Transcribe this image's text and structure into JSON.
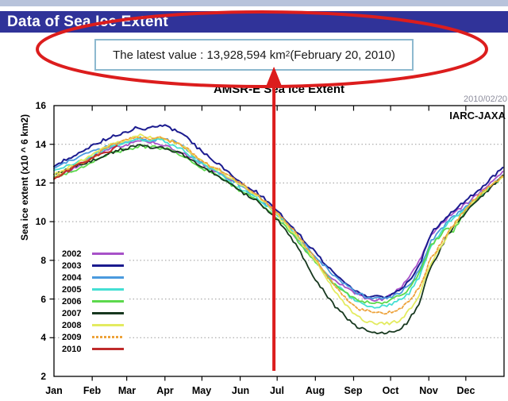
{
  "page": {
    "top_strip_color": "#b8c3db"
  },
  "header": {
    "title": "Data of Sea Ice Extent",
    "bg_color": "#303399",
    "text_color": "#ffffff"
  },
  "callout": {
    "text_before": "The latest value : 13,928,594 km",
    "superscript": "2",
    "text_after": " (February 20, 2010)",
    "border_color": "#8db9cf"
  },
  "chart_data": {
    "type": "line",
    "title": "AMSR-E Sea Ice Extent",
    "date_stamp": "2010/02/20",
    "source_label": "IARC-JAXA",
    "xlabel": "",
    "ylabel": "Sea ice extent (x10 ^ 6 km2)",
    "ylim": [
      2,
      16
    ],
    "yticks": [
      16,
      14,
      12,
      10,
      8,
      6,
      4,
      2
    ],
    "grid_values": [
      14,
      12,
      10,
      8,
      6,
      4
    ],
    "grid_color": "#999999",
    "months": [
      "Jan",
      "Feb",
      "Mar",
      "Apr",
      "May",
      "Jun",
      "Jul",
      "Aug",
      "Sep",
      "Oct",
      "Nov",
      "Dec"
    ],
    "month_start_days": [
      0,
      31,
      59,
      90,
      120,
      151,
      181,
      212,
      243,
      273,
      304,
      334
    ],
    "annotation": {
      "color": "#dc1d1d",
      "arrow_day": 180
    },
    "series": [
      {
        "name": "2002",
        "color": "#a751c8",
        "dashed": false,
        "points": [
          [
            0,
            12.3
          ],
          [
            15,
            12.7
          ],
          [
            31,
            13.35
          ],
          [
            45,
            13.8
          ],
          [
            59,
            14.0
          ],
          [
            70,
            14.15
          ],
          [
            80,
            14.1
          ],
          [
            90,
            13.95
          ],
          [
            105,
            13.5
          ],
          [
            120,
            13.0
          ],
          [
            135,
            12.5
          ],
          [
            151,
            11.95
          ],
          [
            165,
            11.4
          ],
          [
            181,
            10.45
          ],
          [
            195,
            9.3
          ],
          [
            212,
            7.95
          ],
          [
            227,
            7.0
          ],
          [
            243,
            6.35
          ],
          [
            250,
            6.1
          ],
          [
            258,
            5.95
          ],
          [
            266,
            6.0
          ],
          [
            273,
            6.2
          ],
          [
            281,
            6.6
          ],
          [
            288,
            7.1
          ],
          [
            297,
            8.1
          ],
          [
            305,
            9.2
          ],
          [
            319,
            10.2
          ],
          [
            334,
            10.9
          ],
          [
            349,
            11.7
          ],
          [
            364,
            12.6
          ]
        ]
      },
      {
        "name": "2003",
        "color": "#1b1b8f",
        "dashed": false,
        "points": [
          [
            0,
            12.85
          ],
          [
            15,
            13.4
          ],
          [
            31,
            13.95
          ],
          [
            45,
            14.35
          ],
          [
            59,
            14.65
          ],
          [
            67,
            14.9
          ],
          [
            75,
            14.8
          ],
          [
            82,
            14.95
          ],
          [
            87,
            15.0
          ],
          [
            95,
            14.8
          ],
          [
            105,
            14.55
          ],
          [
            120,
            13.6
          ],
          [
            135,
            12.9
          ],
          [
            151,
            12.05
          ],
          [
            165,
            11.5
          ],
          [
            181,
            10.6
          ],
          [
            195,
            9.6
          ],
          [
            212,
            8.4
          ],
          [
            227,
            7.3
          ],
          [
            243,
            6.5
          ],
          [
            252,
            6.2
          ],
          [
            258,
            6.1
          ],
          [
            266,
            6.1
          ],
          [
            273,
            6.2
          ],
          [
            281,
            6.5
          ],
          [
            288,
            6.9
          ],
          [
            297,
            7.8
          ],
          [
            305,
            9.35
          ],
          [
            319,
            10.3
          ],
          [
            334,
            11.1
          ],
          [
            349,
            11.9
          ],
          [
            364,
            12.8
          ]
        ]
      },
      {
        "name": "2004",
        "color": "#4a9ade",
        "dashed": false,
        "points": [
          [
            0,
            12.75
          ],
          [
            15,
            13.2
          ],
          [
            31,
            13.6
          ],
          [
            45,
            13.95
          ],
          [
            59,
            14.15
          ],
          [
            70,
            14.3
          ],
          [
            80,
            14.2
          ],
          [
            90,
            14.25
          ],
          [
            100,
            14.1
          ],
          [
            105,
            13.9
          ],
          [
            120,
            13.05
          ],
          [
            135,
            12.6
          ],
          [
            151,
            11.85
          ],
          [
            165,
            11.3
          ],
          [
            181,
            10.35
          ],
          [
            195,
            9.4
          ],
          [
            212,
            8.2
          ],
          [
            227,
            7.2
          ],
          [
            243,
            6.4
          ],
          [
            252,
            6.15
          ],
          [
            260,
            6.0
          ],
          [
            266,
            6.05
          ],
          [
            273,
            6.1
          ],
          [
            281,
            6.35
          ],
          [
            288,
            6.7
          ],
          [
            297,
            7.6
          ],
          [
            305,
            8.9
          ],
          [
            319,
            10.0
          ],
          [
            334,
            10.8
          ],
          [
            349,
            11.6
          ],
          [
            364,
            12.4
          ]
        ]
      },
      {
        "name": "2005",
        "color": "#44dfd3",
        "dashed": false,
        "points": [
          [
            0,
            12.65
          ],
          [
            15,
            13.0
          ],
          [
            31,
            13.4
          ],
          [
            45,
            13.8
          ],
          [
            59,
            14.1
          ],
          [
            68,
            14.3
          ],
          [
            76,
            14.2
          ],
          [
            85,
            14.3
          ],
          [
            95,
            14.0
          ],
          [
            105,
            13.7
          ],
          [
            120,
            12.95
          ],
          [
            135,
            12.45
          ],
          [
            151,
            11.7
          ],
          [
            165,
            11.2
          ],
          [
            181,
            10.4
          ],
          [
            195,
            9.4
          ],
          [
            212,
            8.0
          ],
          [
            227,
            6.8
          ],
          [
            243,
            5.95
          ],
          [
            252,
            5.7
          ],
          [
            260,
            5.6
          ],
          [
            268,
            5.65
          ],
          [
            273,
            5.7
          ],
          [
            281,
            5.95
          ],
          [
            288,
            6.3
          ],
          [
            297,
            7.2
          ],
          [
            305,
            8.6
          ],
          [
            319,
            9.9
          ],
          [
            334,
            10.7
          ],
          [
            349,
            11.5
          ],
          [
            364,
            12.35
          ]
        ]
      },
      {
        "name": "2006",
        "color": "#5cd94c",
        "dashed": false,
        "points": [
          [
            0,
            12.3
          ],
          [
            15,
            12.6
          ],
          [
            31,
            13.05
          ],
          [
            45,
            13.5
          ],
          [
            59,
            13.75
          ],
          [
            70,
            13.9
          ],
          [
            80,
            13.85
          ],
          [
            90,
            13.8
          ],
          [
            105,
            13.4
          ],
          [
            120,
            12.75
          ],
          [
            135,
            12.3
          ],
          [
            151,
            11.6
          ],
          [
            165,
            11.1
          ],
          [
            181,
            10.2
          ],
          [
            195,
            9.2
          ],
          [
            212,
            7.9
          ],
          [
            227,
            6.8
          ],
          [
            243,
            6.05
          ],
          [
            252,
            5.85
          ],
          [
            260,
            5.75
          ],
          [
            268,
            5.8
          ],
          [
            273,
            5.9
          ],
          [
            281,
            6.2
          ],
          [
            288,
            6.5
          ],
          [
            297,
            7.4
          ],
          [
            305,
            8.7
          ],
          [
            319,
            9.7
          ],
          [
            323,
            9.45
          ],
          [
            329,
            10.0
          ],
          [
            334,
            10.6
          ],
          [
            349,
            11.5
          ],
          [
            364,
            12.3
          ]
        ]
      },
      {
        "name": "2007",
        "color": "#17381f",
        "dashed": false,
        "points": [
          [
            0,
            12.45
          ],
          [
            15,
            12.8
          ],
          [
            31,
            13.15
          ],
          [
            45,
            13.55
          ],
          [
            59,
            13.8
          ],
          [
            70,
            13.95
          ],
          [
            80,
            13.85
          ],
          [
            90,
            13.8
          ],
          [
            105,
            13.45
          ],
          [
            120,
            12.85
          ],
          [
            135,
            12.3
          ],
          [
            151,
            11.55
          ],
          [
            165,
            11.05
          ],
          [
            181,
            10.1
          ],
          [
            190,
            9.4
          ],
          [
            200,
            8.4
          ],
          [
            212,
            7.0
          ],
          [
            227,
            5.7
          ],
          [
            243,
            4.65
          ],
          [
            252,
            4.4
          ],
          [
            260,
            4.28
          ],
          [
            268,
            4.25
          ],
          [
            275,
            4.3
          ],
          [
            281,
            4.45
          ],
          [
            288,
            4.9
          ],
          [
            297,
            5.9
          ],
          [
            305,
            7.6
          ],
          [
            312,
            8.4
          ],
          [
            319,
            9.3
          ],
          [
            334,
            10.5
          ],
          [
            349,
            11.4
          ],
          [
            364,
            12.4
          ]
        ]
      },
      {
        "name": "2008",
        "color": "#e3eb60",
        "dashed": false,
        "points": [
          [
            0,
            12.4
          ],
          [
            15,
            12.9
          ],
          [
            31,
            13.45
          ],
          [
            45,
            13.95
          ],
          [
            59,
            14.25
          ],
          [
            70,
            14.45
          ],
          [
            80,
            14.35
          ],
          [
            90,
            14.3
          ],
          [
            105,
            13.9
          ],
          [
            120,
            13.1
          ],
          [
            135,
            12.6
          ],
          [
            151,
            11.9
          ],
          [
            165,
            11.35
          ],
          [
            181,
            10.35
          ],
          [
            195,
            9.35
          ],
          [
            212,
            8.0
          ],
          [
            227,
            6.5
          ],
          [
            243,
            5.2
          ],
          [
            252,
            4.9
          ],
          [
            260,
            4.75
          ],
          [
            268,
            4.7
          ],
          [
            275,
            4.8
          ],
          [
            281,
            4.9
          ],
          [
            288,
            5.4
          ],
          [
            297,
            6.3
          ],
          [
            305,
            7.8
          ],
          [
            319,
            9.3
          ],
          [
            334,
            10.7
          ],
          [
            349,
            11.6
          ],
          [
            364,
            12.3
          ]
        ]
      },
      {
        "name": "2009",
        "color": "#eda23a",
        "dashed": true,
        "points": [
          [
            0,
            12.25
          ],
          [
            15,
            12.8
          ],
          [
            31,
            13.3
          ],
          [
            45,
            13.9
          ],
          [
            59,
            14.2
          ],
          [
            67,
            14.4
          ],
          [
            75,
            14.3
          ],
          [
            85,
            14.35
          ],
          [
            95,
            14.15
          ],
          [
            105,
            13.9
          ],
          [
            120,
            13.15
          ],
          [
            135,
            12.65
          ],
          [
            151,
            12.0
          ],
          [
            165,
            11.4
          ],
          [
            181,
            10.5
          ],
          [
            195,
            9.5
          ],
          [
            212,
            8.1
          ],
          [
            227,
            6.7
          ],
          [
            243,
            5.6
          ],
          [
            252,
            5.4
          ],
          [
            260,
            5.3
          ],
          [
            268,
            5.3
          ],
          [
            275,
            5.35
          ],
          [
            281,
            5.5
          ],
          [
            288,
            5.9
          ],
          [
            297,
            6.7
          ],
          [
            305,
            8.0
          ],
          [
            319,
            9.4
          ],
          [
            334,
            10.7
          ],
          [
            349,
            11.6
          ],
          [
            364,
            12.35
          ]
        ]
      },
      {
        "name": "2010",
        "color": "#bf2b2b",
        "dashed": false,
        "points": [
          [
            0,
            12.2
          ],
          [
            8,
            12.5
          ],
          [
            15,
            12.75
          ],
          [
            22,
            13.0
          ],
          [
            31,
            13.3
          ],
          [
            38,
            13.5
          ],
          [
            45,
            13.65
          ],
          [
            51,
            13.93
          ]
        ]
      }
    ]
  }
}
